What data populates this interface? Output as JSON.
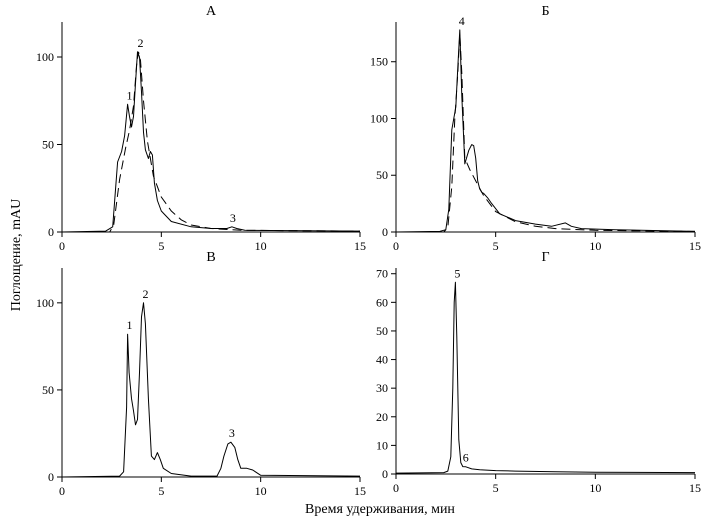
{
  "figure": {
    "xlabel": "Время удерживания, мин",
    "ylabel": "Поглощение, mAU"
  },
  "chart_data": [
    {
      "type": "line",
      "title": "А",
      "xlim": [
        0,
        15
      ],
      "ylim": [
        0,
        120
      ],
      "x_ticks": [
        0,
        5,
        10,
        15
      ],
      "y_ticks": [
        0,
        50,
        100
      ],
      "grid": false,
      "series": [
        {
          "style": "solid",
          "x": [
            0,
            2.2,
            2.55,
            2.7,
            2.8,
            3.0,
            3.15,
            3.3,
            3.4,
            3.5,
            3.6,
            3.7,
            3.8,
            3.9,
            4.0,
            4.1,
            4.2,
            4.35,
            4.45,
            4.55,
            4.65,
            4.8,
            5.0,
            5.5,
            6.5,
            7.5,
            8.3,
            8.55,
            8.8,
            9.2,
            15
          ],
          "y": [
            0,
            0.5,
            3,
            25,
            40,
            46,
            55,
            73,
            66,
            60,
            66,
            85,
            103,
            100,
            80,
            57,
            47,
            42,
            46,
            44,
            28,
            18,
            12,
            6,
            3,
            2,
            2,
            3,
            2,
            1,
            0.5
          ]
        },
        {
          "style": "dashed",
          "x": [
            0,
            2.4,
            2.6,
            2.9,
            3.2,
            3.4,
            3.6,
            3.75,
            3.85,
            3.95,
            4.1,
            4.3,
            4.6,
            5.0,
            5.5,
            6.0,
            6.5,
            7.5,
            9,
            15
          ],
          "y": [
            0,
            0,
            4,
            30,
            48,
            58,
            72,
            95,
            103,
            98,
            75,
            52,
            32,
            20,
            12,
            7,
            4,
            2,
            1,
            0.5
          ]
        }
      ],
      "peaks": [
        {
          "label": "1",
          "x": 3.3,
          "y": 73
        },
        {
          "label": "2",
          "x": 3.85,
          "y": 103
        },
        {
          "label": "3",
          "x": 8.5,
          "y": 3
        }
      ]
    },
    {
      "type": "line",
      "title": "Б",
      "xlim": [
        0,
        15
      ],
      "ylim": [
        0,
        185
      ],
      "x_ticks": [
        0,
        5,
        10,
        15
      ],
      "y_ticks": [
        0,
        50,
        100,
        150
      ],
      "grid": false,
      "series": [
        {
          "style": "solid",
          "x": [
            0,
            2.2,
            2.5,
            2.65,
            2.8,
            3.0,
            3.1,
            3.2,
            3.3,
            3.45,
            3.65,
            3.8,
            3.9,
            4.0,
            4.1,
            4.2,
            4.3,
            4.4,
            4.6,
            4.8,
            5.2,
            6.0,
            7.0,
            7.8,
            8.5,
            8.8,
            9.3,
            11,
            15
          ],
          "y": [
            0,
            0.5,
            2,
            20,
            90,
            110,
            145,
            178,
            120,
            60,
            72,
            77,
            76,
            65,
            45,
            38,
            35,
            34,
            30,
            25,
            16,
            10,
            7,
            5,
            8,
            5,
            3,
            2,
            0.5
          ]
        },
        {
          "style": "dashed",
          "x": [
            0,
            2.4,
            2.6,
            2.8,
            2.95,
            3.1,
            3.2,
            3.3,
            3.45,
            3.7,
            4.0,
            4.4,
            5.0,
            6.0,
            7.0,
            8.0,
            10,
            15
          ],
          "y": [
            0,
            0,
            4,
            40,
            100,
            140,
            175,
            140,
            65,
            55,
            45,
            32,
            18,
            9,
            5,
            3,
            1.5,
            0.5
          ]
        }
      ],
      "peaks": [
        {
          "label": "4",
          "x": 3.2,
          "y": 178
        }
      ]
    },
    {
      "type": "line",
      "title": "В",
      "xlim": [
        0,
        15
      ],
      "ylim": [
        0,
        120
      ],
      "x_ticks": [
        0,
        5,
        10,
        15
      ],
      "y_ticks": [
        0,
        50,
        100
      ],
      "grid": false,
      "series": [
        {
          "style": "solid",
          "x": [
            0,
            2.9,
            3.1,
            3.25,
            3.3,
            3.38,
            3.5,
            3.6,
            3.7,
            3.8,
            3.9,
            4.0,
            4.1,
            4.2,
            4.35,
            4.5,
            4.65,
            4.8,
            4.95,
            5.1,
            5.5,
            6.5,
            7.8,
            8.0,
            8.15,
            8.35,
            8.5,
            8.7,
            8.85,
            9.0,
            9.3,
            9.6,
            10.0,
            15
          ],
          "y": [
            0,
            0.5,
            3,
            40,
            82,
            60,
            45,
            38,
            30,
            33,
            60,
            92,
            100,
            88,
            45,
            12,
            10,
            14,
            10,
            5,
            2,
            0.5,
            0.5,
            5,
            12,
            19,
            20,
            17,
            10,
            5,
            5,
            4,
            1,
            0.5
          ]
        },
        {
          "style": "dashed",
          "x": [
            0,
            15
          ],
          "y": [
            0,
            0
          ]
        }
      ],
      "peaks": [
        {
          "label": "1",
          "x": 3.3,
          "y": 82
        },
        {
          "label": "2",
          "x": 4.1,
          "y": 100
        },
        {
          "label": "3",
          "x": 8.45,
          "y": 20
        }
      ]
    },
    {
      "type": "line",
      "title": "Г",
      "xlim": [
        0,
        15
      ],
      "ylim": [
        0,
        72
      ],
      "x_ticks": [
        0,
        5,
        10,
        15
      ],
      "y_ticks": [
        0,
        10,
        20,
        30,
        40,
        50,
        60,
        70
      ],
      "grid": false,
      "series": [
        {
          "style": "solid",
          "x": [
            0,
            2.4,
            2.6,
            2.75,
            2.85,
            2.92,
            2.98,
            3.05,
            3.15,
            3.25,
            3.35,
            3.5,
            3.8,
            4.2,
            5.0,
            6.0,
            8.0,
            10,
            15
          ],
          "y": [
            0.3,
            0.5,
            1,
            6,
            30,
            60,
            67,
            48,
            12,
            4,
            2.6,
            2.5,
            1.8,
            1.5,
            1.2,
            1.0,
            0.8,
            0.6,
            0.5
          ]
        }
      ],
      "peaks": [
        {
          "label": "5",
          "x": 2.98,
          "y": 67
        },
        {
          "label": "6",
          "x": 3.4,
          "y": 2.6
        }
      ]
    }
  ]
}
